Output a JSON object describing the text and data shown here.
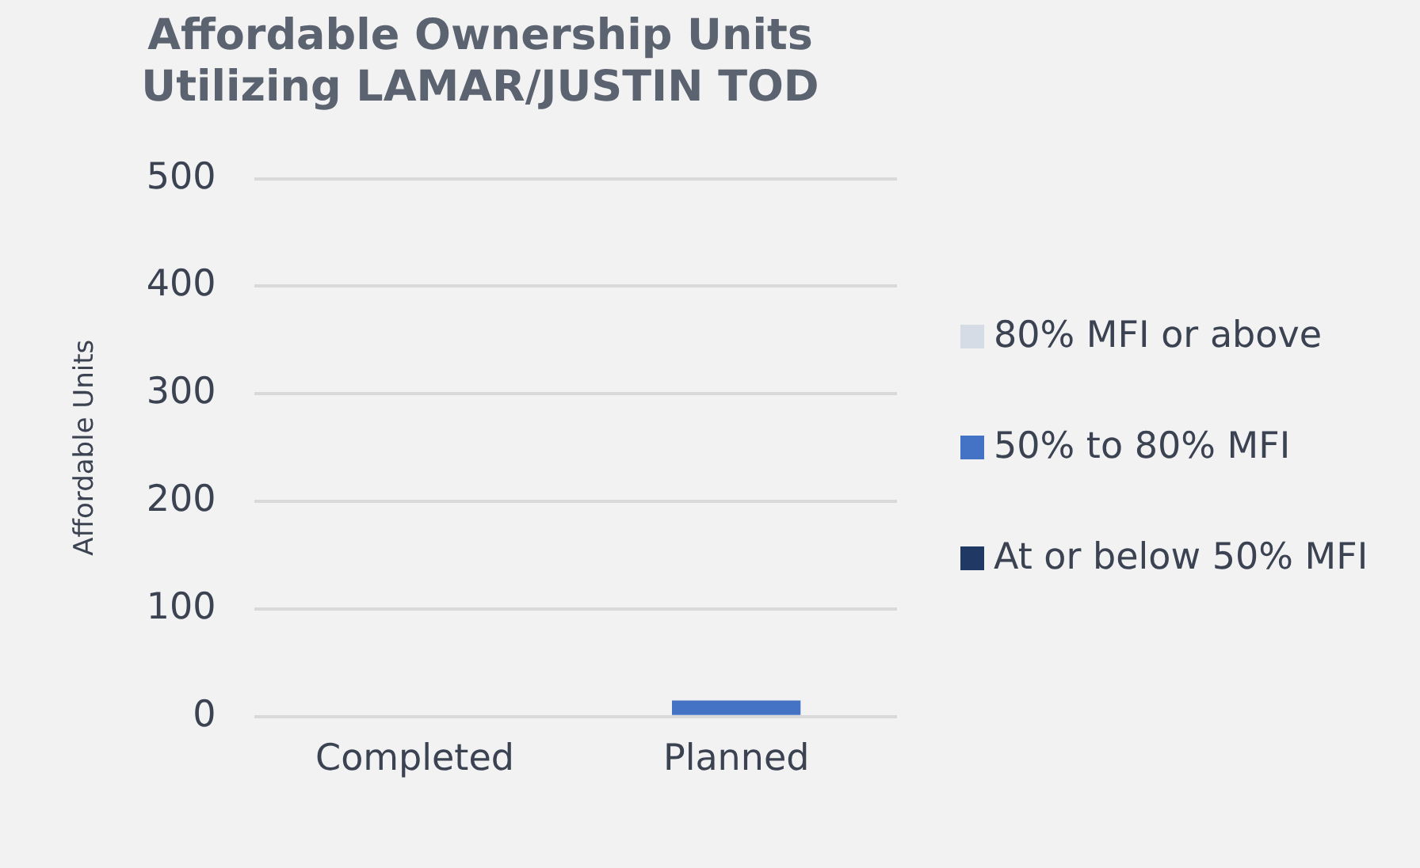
{
  "chart_data": {
    "type": "bar",
    "title": "Affordable Ownership Units\nUtilizing LAMAR/JUSTIN TOD",
    "ylabel": "Affordable Units",
    "categories": [
      "Completed",
      "Planned"
    ],
    "stacked": true,
    "series": [
      {
        "name": "At or below 50% MFI",
        "color": "#1f3864",
        "values": [
          0,
          0
        ]
      },
      {
        "name": "50% to 80% MFI",
        "color": "#4472c4",
        "values": [
          0,
          15
        ]
      },
      {
        "name": "80% MFI or above",
        "color": "#d6dce5",
        "values": [
          0,
          0
        ]
      }
    ],
    "ylim": [
      0,
      500
    ],
    "yticks": [
      0,
      100,
      200,
      300,
      400,
      500
    ],
    "grid": "y",
    "legend": "right"
  }
}
